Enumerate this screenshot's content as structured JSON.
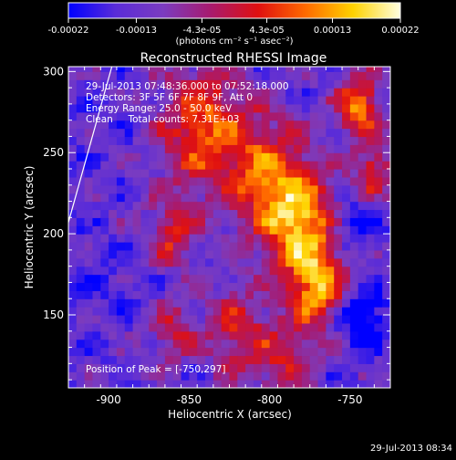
{
  "colorbar": {
    "tick_labels": [
      "-0.00022",
      "-0.00013",
      "-4.3e-05",
      "4.3e-05",
      "0.00013",
      "0.00022"
    ],
    "tick_values": [
      -0.00022,
      -0.00013,
      -4.3e-05,
      4.3e-05,
      0.00013,
      0.00022
    ],
    "range": [
      -0.00022,
      0.00022
    ],
    "units_label": "(photons cm⁻² s⁻¹ asec⁻²)",
    "colors": [
      "#0000ff",
      "#5a2cd8",
      "#7b3cc0",
      "#a81a6e",
      "#e01010",
      "#ff6a00",
      "#ffd200",
      "#ffffe0"
    ]
  },
  "chart_data": {
    "type": "heatmap",
    "title": "Reconstructed RHESSI Image",
    "xlabel": "Heliocentric X (arcsec)",
    "ylabel": "Heliocentric Y (arcsec)",
    "xlim": [
      -925,
      -725
    ],
    "ylim": [
      105,
      303
    ],
    "x_ticks": [
      -900,
      -850,
      -800,
      -750
    ],
    "y_ticks": [
      150,
      200,
      250,
      300
    ],
    "x_tick_labels": [
      "-900",
      "-850",
      "-800",
      "-750"
    ],
    "y_tick_labels": [
      "150",
      "200",
      "250",
      "300"
    ],
    "info_lines": [
      "29-Jul-2013 07:48:36.000 to 07:52:18.000",
      "Detectors: 3F 5F 6F 7F 8F 9F, Att 0",
      "Energy Range: 25.0 - 50.0 keV",
      "Clean     Total counts: 7.31E+03"
    ],
    "peak_label": "Position of Peak = [-750,297]",
    "peak": [
      -750,
      297
    ],
    "limb_line": [
      [
        -925,
        207
      ],
      [
        -898,
        303
      ]
    ]
  },
  "footer": {
    "timestamp": "29-Jul-2013 08:34"
  }
}
